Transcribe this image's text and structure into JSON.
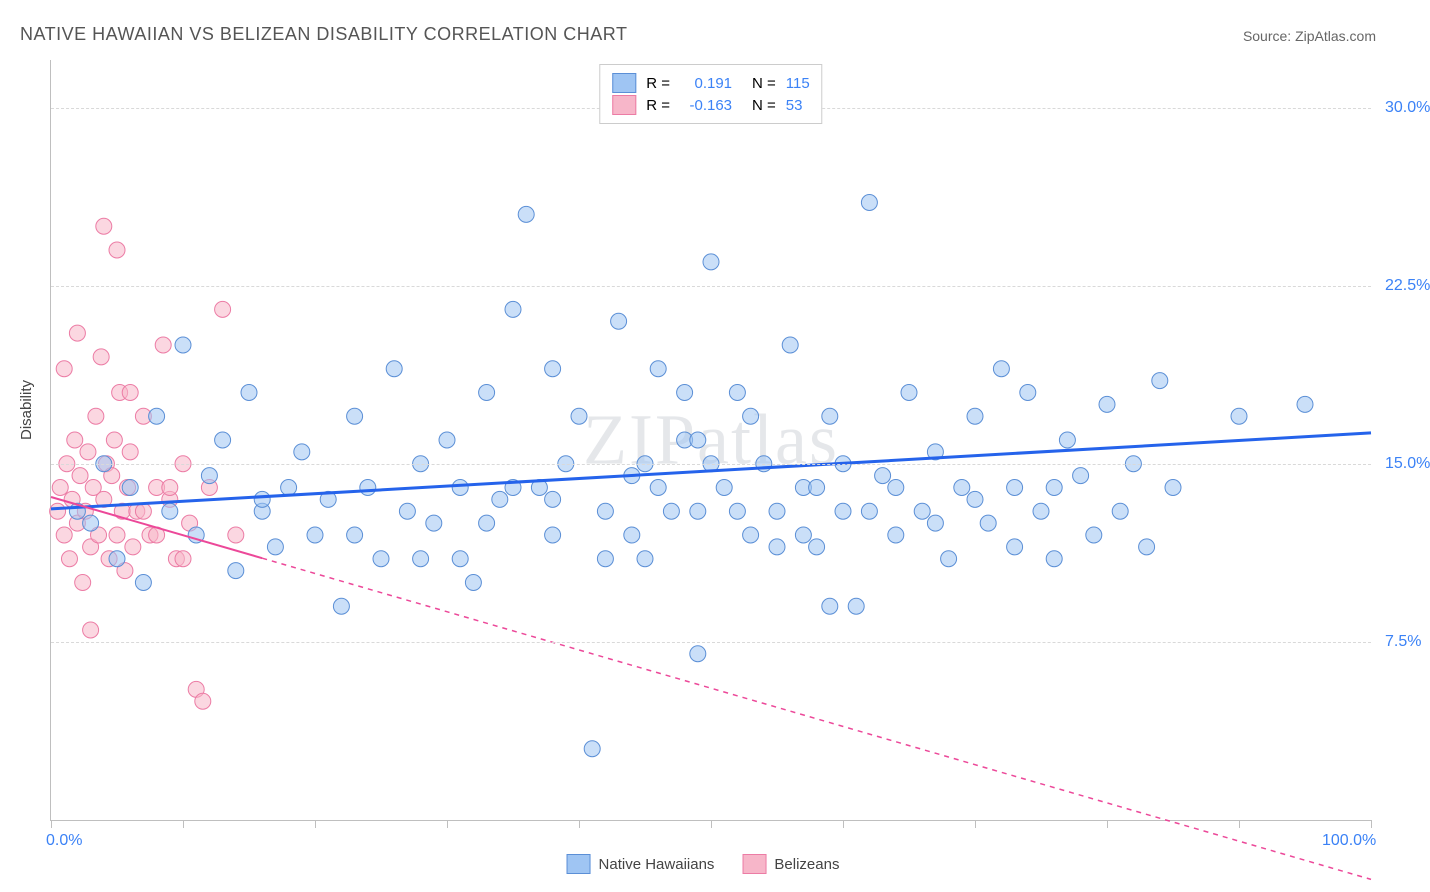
{
  "title": "NATIVE HAWAIIAN VS BELIZEAN DISABILITY CORRELATION CHART",
  "source": "Source: ZipAtlas.com",
  "watermark": "ZIPatlas",
  "y_axis_title": "Disability",
  "chart": {
    "type": "scatter",
    "xlim": [
      0,
      100
    ],
    "ylim": [
      0,
      32
    ],
    "x_ticks": [
      0,
      10,
      20,
      30,
      40,
      50,
      60,
      70,
      80,
      90,
      100
    ],
    "y_grid": [
      7.5,
      15.0,
      22.5,
      30.0
    ],
    "x_min_label": "0.0%",
    "x_max_label": "100.0%",
    "y_labels": [
      "7.5%",
      "15.0%",
      "22.5%",
      "30.0%"
    ],
    "background_color": "#ffffff",
    "grid_color": "#d9d9d9",
    "axis_color": "#bfbfbf",
    "series": [
      {
        "name": "Native Hawaiians",
        "R": "0.191",
        "N": "115",
        "color_fill": "#9fc5f3",
        "color_stroke": "#5b8fd6",
        "marker_radius": 8,
        "marker_opacity": 0.55,
        "trend": {
          "x1": 0,
          "y1": 13.1,
          "x2": 100,
          "y2": 16.3,
          "stroke": "#2563eb",
          "width": 3,
          "dash": "none",
          "solid_until_x": 100
        },
        "points": [
          [
            2,
            13
          ],
          [
            3,
            12.5
          ],
          [
            4,
            15
          ],
          [
            5,
            11
          ],
          [
            6,
            14
          ],
          [
            7,
            10
          ],
          [
            8,
            17
          ],
          [
            9,
            13
          ],
          [
            10,
            20
          ],
          [
            11,
            12
          ],
          [
            12,
            14.5
          ],
          [
            13,
            16
          ],
          [
            14,
            10.5
          ],
          [
            15,
            18
          ],
          [
            16,
            13
          ],
          [
            17,
            11.5
          ],
          [
            18,
            14
          ],
          [
            19,
            15.5
          ],
          [
            20,
            12
          ],
          [
            21,
            13.5
          ],
          [
            22,
            9
          ],
          [
            23,
            17
          ],
          [
            24,
            14
          ],
          [
            25,
            11
          ],
          [
            26,
            19
          ],
          [
            27,
            13
          ],
          [
            28,
            15
          ],
          [
            29,
            12.5
          ],
          [
            30,
            16
          ],
          [
            31,
            14
          ],
          [
            32,
            10
          ],
          [
            33,
            18
          ],
          [
            34,
            13.5
          ],
          [
            35,
            21.5
          ],
          [
            36,
            25.5
          ],
          [
            37,
            14
          ],
          [
            38,
            12
          ],
          [
            39,
            15
          ],
          [
            40,
            17
          ],
          [
            41,
            3
          ],
          [
            42,
            13
          ],
          [
            43,
            21
          ],
          [
            44,
            14.5
          ],
          [
            45,
            11
          ],
          [
            46,
            19
          ],
          [
            47,
            13
          ],
          [
            48,
            16
          ],
          [
            49,
            7
          ],
          [
            50,
            23.5
          ],
          [
            51,
            14
          ],
          [
            52,
            18
          ],
          [
            53,
            12
          ],
          [
            54,
            15
          ],
          [
            55,
            13
          ],
          [
            56,
            20
          ],
          [
            57,
            14
          ],
          [
            58,
            11.5
          ],
          [
            59,
            17
          ],
          [
            60,
            13
          ],
          [
            61,
            9
          ],
          [
            62,
            26
          ],
          [
            63,
            14.5
          ],
          [
            64,
            12
          ],
          [
            65,
            18
          ],
          [
            66,
            13
          ],
          [
            67,
            15.5
          ],
          [
            68,
            11
          ],
          [
            69,
            14
          ],
          [
            70,
            17
          ],
          [
            71,
            12.5
          ],
          [
            72,
            19
          ],
          [
            73,
            14
          ],
          [
            74,
            18
          ],
          [
            75,
            13
          ],
          [
            76,
            11
          ],
          [
            77,
            16
          ],
          [
            78,
            14.5
          ],
          [
            79,
            12
          ],
          [
            80,
            17.5
          ],
          [
            81,
            13
          ],
          [
            82,
            15
          ],
          [
            83,
            11.5
          ],
          [
            84,
            18.5
          ],
          [
            85,
            14
          ],
          [
            90,
            17
          ],
          [
            95,
            17.5
          ],
          [
            16,
            13.5
          ],
          [
            23,
            12
          ],
          [
            31,
            11
          ],
          [
            35,
            14
          ],
          [
            38,
            19
          ],
          [
            42,
            11
          ],
          [
            46,
            14
          ],
          [
            49,
            13
          ],
          [
            53,
            17
          ],
          [
            57,
            12
          ],
          [
            60,
            15
          ],
          [
            64,
            14
          ],
          [
            67,
            12.5
          ],
          [
            70,
            13.5
          ],
          [
            73,
            11.5
          ],
          [
            76,
            14
          ],
          [
            50,
            15
          ],
          [
            58,
            14
          ],
          [
            62,
            13
          ],
          [
            44,
            12
          ],
          [
            48,
            18
          ],
          [
            52,
            13
          ],
          [
            55,
            11.5
          ],
          [
            59,
            9
          ],
          [
            28,
            11
          ],
          [
            33,
            12.5
          ],
          [
            38,
            13.5
          ],
          [
            45,
            15
          ],
          [
            49,
            16
          ]
        ]
      },
      {
        "name": "Belizeans",
        "R": "-0.163",
        "N": "53",
        "color_fill": "#f7b6c9",
        "color_stroke": "#ec7ca5",
        "marker_radius": 8,
        "marker_opacity": 0.55,
        "trend": {
          "x1": 0,
          "y1": 13.6,
          "x2": 100,
          "y2": -2.5,
          "stroke": "#ec4899",
          "width": 2,
          "dash": "5,5",
          "solid_until_x": 16
        },
        "points": [
          [
            0.5,
            13
          ],
          [
            0.7,
            14
          ],
          [
            1,
            12
          ],
          [
            1.2,
            15
          ],
          [
            1.4,
            11
          ],
          [
            1.6,
            13.5
          ],
          [
            1.8,
            16
          ],
          [
            2,
            12.5
          ],
          [
            2.2,
            14.5
          ],
          [
            2.4,
            10
          ],
          [
            2.6,
            13
          ],
          [
            2.8,
            15.5
          ],
          [
            3,
            11.5
          ],
          [
            3.2,
            14
          ],
          [
            3.4,
            17
          ],
          [
            3.6,
            12
          ],
          [
            3.8,
            19.5
          ],
          [
            4,
            13.5
          ],
          [
            4.2,
            15
          ],
          [
            4.4,
            11
          ],
          [
            4.6,
            14.5
          ],
          [
            4.8,
            16
          ],
          [
            5,
            12
          ],
          [
            5.2,
            18
          ],
          [
            5.4,
            13
          ],
          [
            5.6,
            10.5
          ],
          [
            5.8,
            14
          ],
          [
            6,
            15.5
          ],
          [
            6.2,
            11.5
          ],
          [
            6.5,
            13
          ],
          [
            7,
            17
          ],
          [
            7.5,
            12
          ],
          [
            8,
            14
          ],
          [
            8.5,
            20
          ],
          [
            9,
            13.5
          ],
          [
            9.5,
            11
          ],
          [
            10,
            15
          ],
          [
            10.5,
            12.5
          ],
          [
            11,
            5.5
          ],
          [
            11.5,
            5
          ],
          [
            12,
            14
          ],
          [
            13,
            21.5
          ],
          [
            2,
            20.5
          ],
          [
            3,
            8
          ],
          [
            4,
            25
          ],
          [
            1,
            19
          ],
          [
            5,
            24
          ],
          [
            6,
            18
          ],
          [
            7,
            13
          ],
          [
            8,
            12
          ],
          [
            9,
            14
          ],
          [
            10,
            11
          ],
          [
            14,
            12
          ]
        ]
      }
    ]
  },
  "legend_top": {
    "r_label": "R =",
    "n_label": "N =",
    "value_color": "#3b82f6",
    "label_color": "#555555"
  },
  "legend_bottom": {
    "items": [
      "Native Hawaiians",
      "Belizeans"
    ]
  }
}
